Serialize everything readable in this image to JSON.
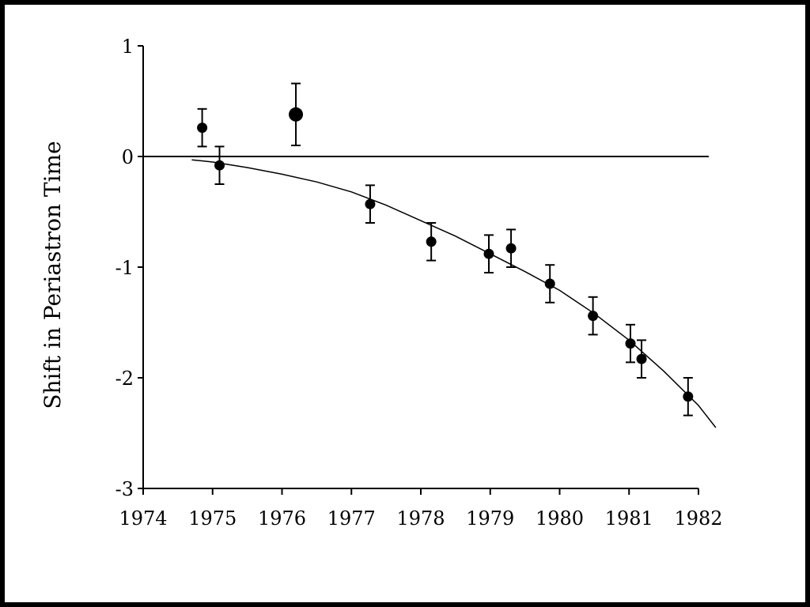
{
  "chart_data": {
    "type": "scatter",
    "title": "",
    "xlabel": "",
    "ylabel": "Shift in Periastron Time",
    "xlim": [
      1974,
      1982
    ],
    "ylim": [
      -3,
      1
    ],
    "x_ticks": [
      1974,
      1975,
      1976,
      1977,
      1978,
      1979,
      1980,
      1981,
      1982
    ],
    "y_ticks": [
      1,
      0,
      -1,
      -2,
      -3
    ],
    "y_tick_labels": [
      "1",
      "0",
      "-1",
      "-2",
      "-3"
    ],
    "grid": false,
    "reference_line_y": 0,
    "points": [
      {
        "x": 1974.85,
        "y": 0.26,
        "err": 0.17
      },
      {
        "x": 1975.1,
        "y": -0.08,
        "err": 0.17
      },
      {
        "x": 1976.2,
        "y": 0.38,
        "err": 0.28
      },
      {
        "x": 1977.27,
        "y": -0.43,
        "err": 0.17
      },
      {
        "x": 1978.15,
        "y": -0.77,
        "err": 0.17
      },
      {
        "x": 1978.98,
        "y": -0.88,
        "err": 0.17
      },
      {
        "x": 1979.3,
        "y": -0.83,
        "err": 0.17
      },
      {
        "x": 1979.86,
        "y": -1.15,
        "err": 0.17
      },
      {
        "x": 1980.48,
        "y": -1.44,
        "err": 0.17
      },
      {
        "x": 1981.02,
        "y": -1.69,
        "err": 0.17
      },
      {
        "x": 1981.18,
        "y": -1.83,
        "err": 0.17
      },
      {
        "x": 1981.85,
        "y": -2.17,
        "err": 0.17
      }
    ],
    "curve": {
      "x": [
        1974.7,
        1975.0,
        1975.5,
        1976.0,
        1976.5,
        1977.0,
        1977.5,
        1978.0,
        1978.5,
        1979.0,
        1979.5,
        1980.0,
        1980.5,
        1981.0,
        1981.5,
        1982.0,
        1982.25
      ],
      "y": [
        -0.03,
        -0.05,
        -0.1,
        -0.16,
        -0.23,
        -0.32,
        -0.44,
        -0.58,
        -0.72,
        -0.88,
        -1.04,
        -1.21,
        -1.42,
        -1.66,
        -1.94,
        -2.25,
        -2.45
      ]
    }
  }
}
